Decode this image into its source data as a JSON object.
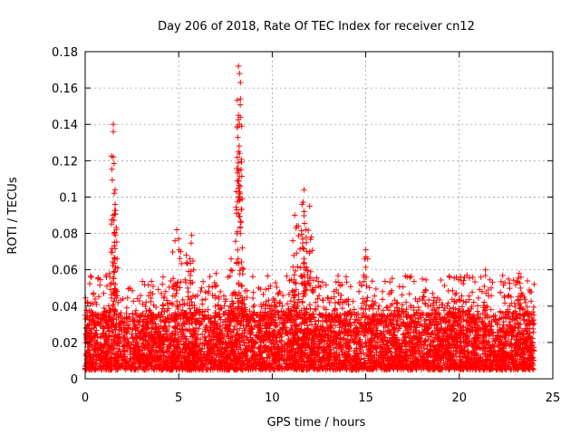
{
  "chart_data": {
    "type": "scatter",
    "title": "Day 206 of 2018, Rate Of TEC Index for receiver cn12",
    "xlabel": "GPS time / hours",
    "ylabel": "ROTI / TECUs",
    "xlim": [
      0,
      25
    ],
    "ylim": [
      0,
      0.18
    ],
    "xticks": [
      "0",
      "5",
      "10",
      "15",
      "20",
      "25"
    ],
    "yticks": [
      "0",
      "0.02",
      "0.04",
      "0.06",
      "0.08",
      "0.1",
      "0.12",
      "0.14",
      "0.16",
      "0.18"
    ],
    "grid": true,
    "marker": "+",
    "color": "#ff0000",
    "baseline_band": [
      0.005,
      0.035
    ],
    "series": [
      {
        "name": "ROTI",
        "notable_points": [
          {
            "x": 1.5,
            "y": 0.14
          },
          {
            "x": 1.5,
            "y": 0.136
          },
          {
            "x": 1.5,
            "y": 0.122
          },
          {
            "x": 1.6,
            "y": 0.104
          },
          {
            "x": 1.55,
            "y": 0.102
          },
          {
            "x": 1.6,
            "y": 0.096
          },
          {
            "x": 1.5,
            "y": 0.09
          },
          {
            "x": 1.55,
            "y": 0.08
          },
          {
            "x": 1.7,
            "y": 0.066
          },
          {
            "x": 1.3,
            "y": 0.058
          },
          {
            "x": 4.9,
            "y": 0.082
          },
          {
            "x": 4.8,
            "y": 0.076
          },
          {
            "x": 5.1,
            "y": 0.07
          },
          {
            "x": 5.4,
            "y": 0.068
          },
          {
            "x": 5.7,
            "y": 0.079
          },
          {
            "x": 5.6,
            "y": 0.066
          },
          {
            "x": 5.8,
            "y": 0.06
          },
          {
            "x": 7.0,
            "y": 0.058
          },
          {
            "x": 8.2,
            "y": 0.172
          },
          {
            "x": 8.25,
            "y": 0.168
          },
          {
            "x": 8.3,
            "y": 0.163
          },
          {
            "x": 8.3,
            "y": 0.154
          },
          {
            "x": 8.2,
            "y": 0.145
          },
          {
            "x": 8.25,
            "y": 0.14
          },
          {
            "x": 8.15,
            "y": 0.139
          },
          {
            "x": 8.2,
            "y": 0.125
          },
          {
            "x": 8.25,
            "y": 0.124
          },
          {
            "x": 8.1,
            "y": 0.093
          },
          {
            "x": 8.3,
            "y": 0.08
          },
          {
            "x": 8.4,
            "y": 0.072
          },
          {
            "x": 7.8,
            "y": 0.066
          },
          {
            "x": 8.1,
            "y": 0.064
          },
          {
            "x": 11.7,
            "y": 0.104
          },
          {
            "x": 11.6,
            "y": 0.096
          },
          {
            "x": 11.7,
            "y": 0.092
          },
          {
            "x": 12.0,
            "y": 0.095
          },
          {
            "x": 11.2,
            "y": 0.09
          },
          {
            "x": 11.4,
            "y": 0.084
          },
          {
            "x": 11.8,
            "y": 0.082
          },
          {
            "x": 12.1,
            "y": 0.078
          },
          {
            "x": 11.1,
            "y": 0.076
          },
          {
            "x": 12.0,
            "y": 0.07
          },
          {
            "x": 11.7,
            "y": 0.066
          },
          {
            "x": 11.8,
            "y": 0.06
          },
          {
            "x": 15.0,
            "y": 0.071
          },
          {
            "x": 15.1,
            "y": 0.066
          },
          {
            "x": 14.9,
            "y": 0.057
          },
          {
            "x": 21.4,
            "y": 0.06
          },
          {
            "x": 23.2,
            "y": 0.058
          },
          {
            "x": 23.3,
            "y": 0.056
          },
          {
            "x": 20.1,
            "y": 0.054
          }
        ]
      }
    ]
  }
}
